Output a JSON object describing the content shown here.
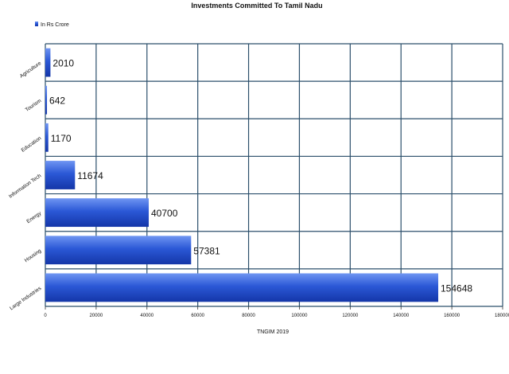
{
  "chart_data": {
    "type": "bar",
    "orientation": "horizontal",
    "title": "Investments Committed To Tamil Nadu",
    "xlabel": "TNGIM 2019",
    "ylabel": "",
    "legend": {
      "position": "top-left"
    },
    "categories": [
      "Agriculture",
      "Tourism",
      "Education",
      "Information Tech",
      "Energy",
      "Housing",
      "Large Industries"
    ],
    "series": [
      {
        "name": "In Rs Crore",
        "values": [
          2010,
          642,
          1170,
          11674,
          40700,
          57381,
          154648
        ]
      }
    ],
    "xlim": [
      0,
      180000
    ],
    "xticks": [
      0,
      20000,
      40000,
      60000,
      80000,
      100000,
      120000,
      140000,
      160000,
      180000
    ],
    "grid": true,
    "colors": {
      "bar": "#2b58d6",
      "bar_light": "#6f95f2",
      "bar_dark": "#1436a8",
      "grid": "#2b4f6b"
    }
  }
}
